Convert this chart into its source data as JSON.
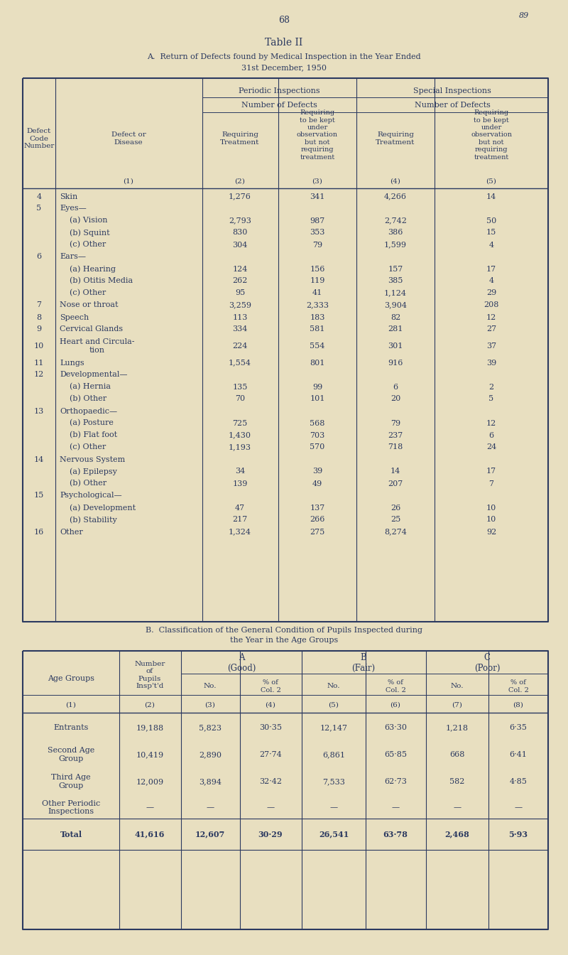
{
  "bg_color": "#e8dfc0",
  "text_color": "#2b3960",
  "page_number": "68",
  "page_corner": "89",
  "title": "Table II",
  "subtitle_a": "A.  Return of Defects found by Medical Inspection in the Year Ended",
  "subtitle_a2": "31st December, 1950",
  "table_a_rows": [
    {
      "code": "4",
      "disease": "Skin",
      "indent": 0,
      "c2": "1,276",
      "c3": "341",
      "c4": "4,266",
      "c5": "14"
    },
    {
      "code": "5",
      "disease": "Eyes—",
      "indent": 0,
      "c2": "",
      "c3": "",
      "c4": "",
      "c5": ""
    },
    {
      "code": "",
      "disease": "(a) Vision",
      "indent": 1,
      "c2": "2,793",
      "c3": "987",
      "c4": "2,742",
      "c5": "50"
    },
    {
      "code": "",
      "disease": "(b) Squint",
      "indent": 1,
      "c2": "830",
      "c3": "353",
      "c4": "386",
      "c5": "15"
    },
    {
      "code": "",
      "disease": "(c) Other",
      "indent": 1,
      "c2": "304",
      "c3": "79",
      "c4": "1,599",
      "c5": "4"
    },
    {
      "code": "6",
      "disease": "Ears—",
      "indent": 0,
      "c2": "",
      "c3": "",
      "c4": "",
      "c5": ""
    },
    {
      "code": "",
      "disease": "(a) Hearing",
      "indent": 1,
      "c2": "124",
      "c3": "156",
      "c4": "157",
      "c5": "17"
    },
    {
      "code": "",
      "disease": "(b) Otitis Media",
      "indent": 1,
      "c2": "262",
      "c3": "119",
      "c4": "385",
      "c5": "4"
    },
    {
      "code": "",
      "disease": "(c) Other",
      "indent": 1,
      "c2": "95",
      "c3": "41",
      "c4": "1,124",
      "c5": "29"
    },
    {
      "code": "7",
      "disease": "Nose or throat",
      "indent": 0,
      "c2": "3,259",
      "c3": "2,333",
      "c4": "3,904",
      "c5": "208"
    },
    {
      "code": "8",
      "disease": "Speech",
      "indent": 0,
      "c2": "113",
      "c3": "183",
      "c4": "82",
      "c5": "12"
    },
    {
      "code": "9",
      "disease": "Cervical Glands",
      "indent": 0,
      "c2": "334",
      "c3": "581",
      "c4": "281",
      "c5": "27"
    },
    {
      "code": "10",
      "disease": "Heart and Circula-\ntion",
      "indent": 0,
      "c2": "224",
      "c3": "554",
      "c4": "301",
      "c5": "37"
    },
    {
      "code": "11",
      "disease": "Lungs",
      "indent": 0,
      "c2": "1,554",
      "c3": "801",
      "c4": "916",
      "c5": "39"
    },
    {
      "code": "12",
      "disease": "Developmental—",
      "indent": 0,
      "c2": "",
      "c3": "",
      "c4": "",
      "c5": ""
    },
    {
      "code": "",
      "disease": "(a) Hernia",
      "indent": 1,
      "c2": "135",
      "c3": "99",
      "c4": "6",
      "c5": "2"
    },
    {
      "code": "",
      "disease": "(b) Other",
      "indent": 1,
      "c2": "70",
      "c3": "101",
      "c4": "20",
      "c5": "5"
    },
    {
      "code": "13",
      "disease": "Orthopaedic—",
      "indent": 0,
      "c2": "",
      "c3": "",
      "c4": "",
      "c5": ""
    },
    {
      "code": "",
      "disease": "(a) Posture",
      "indent": 1,
      "c2": "725",
      "c3": "568",
      "c4": "79",
      "c5": "12"
    },
    {
      "code": "",
      "disease": "(b) Flat foot",
      "indent": 1,
      "c2": "1,430",
      "c3": "703",
      "c4": "237",
      "c5": "6"
    },
    {
      "code": "",
      "disease": "(c) Other",
      "indent": 1,
      "c2": "1,193",
      "c3": "570",
      "c4": "718",
      "c5": "24"
    },
    {
      "code": "14",
      "disease": "Nervous System",
      "indent": 0,
      "c2": "",
      "c3": "",
      "c4": "",
      "c5": ""
    },
    {
      "code": "",
      "disease": "(a) Epilepsy",
      "indent": 1,
      "c2": "34",
      "c3": "39",
      "c4": "14",
      "c5": "17"
    },
    {
      "code": "",
      "disease": "(b) Other",
      "indent": 1,
      "c2": "139",
      "c3": "49",
      "c4": "207",
      "c5": "7"
    },
    {
      "code": "15",
      "disease": "Psychological—",
      "indent": 0,
      "c2": "",
      "c3": "",
      "c4": "",
      "c5": ""
    },
    {
      "code": "",
      "disease": "(a) Development",
      "indent": 1,
      "c2": "47",
      "c3": "137",
      "c4": "26",
      "c5": "10"
    },
    {
      "code": "",
      "disease": "(b) Stability",
      "indent": 1,
      "c2": "217",
      "c3": "266",
      "c4": "25",
      "c5": "10"
    },
    {
      "code": "16",
      "disease": "Other",
      "indent": 0,
      "c2": "1,324",
      "c3": "275",
      "c4": "8,274",
      "c5": "92"
    }
  ],
  "subtitle_b": "B.  Classification of the General Condition of Pupils Inspected during",
  "subtitle_b2": "the Year in the Age Groups",
  "table_b_rows": [
    {
      "group": "Entrants",
      "n": "19,188",
      "no_a": "5,823",
      "pct_a": "30·35",
      "no_b": "12,147",
      "pct_b": "63·30",
      "no_c": "1,218",
      "pct_c": "6·35",
      "is_total": false
    },
    {
      "group": "Second Age\nGroup",
      "n": "10,419",
      "no_a": "2,890",
      "pct_a": "27·74",
      "no_b": "6,861",
      "pct_b": "65·85",
      "no_c": "668",
      "pct_c": "6·41",
      "is_total": false
    },
    {
      "group": "Third Age\nGroup",
      "n": "12,009",
      "no_a": "3,894",
      "pct_a": "32·42",
      "no_b": "7,533",
      "pct_b": "62·73",
      "no_c": "582",
      "pct_c": "4·85",
      "is_total": false
    },
    {
      "group": "Other Periodic\nInspections",
      "n": "—",
      "no_a": "—",
      "pct_a": "—",
      "no_b": "—",
      "pct_b": "—",
      "no_c": "—",
      "pct_c": "—",
      "is_total": false
    },
    {
      "group": "Total",
      "n": "41,616",
      "no_a": "12,607",
      "pct_a": "30·29",
      "no_b": "26,541",
      "pct_b": "63·78",
      "no_c": "2,468",
      "pct_c": "5·93",
      "is_total": true
    }
  ]
}
